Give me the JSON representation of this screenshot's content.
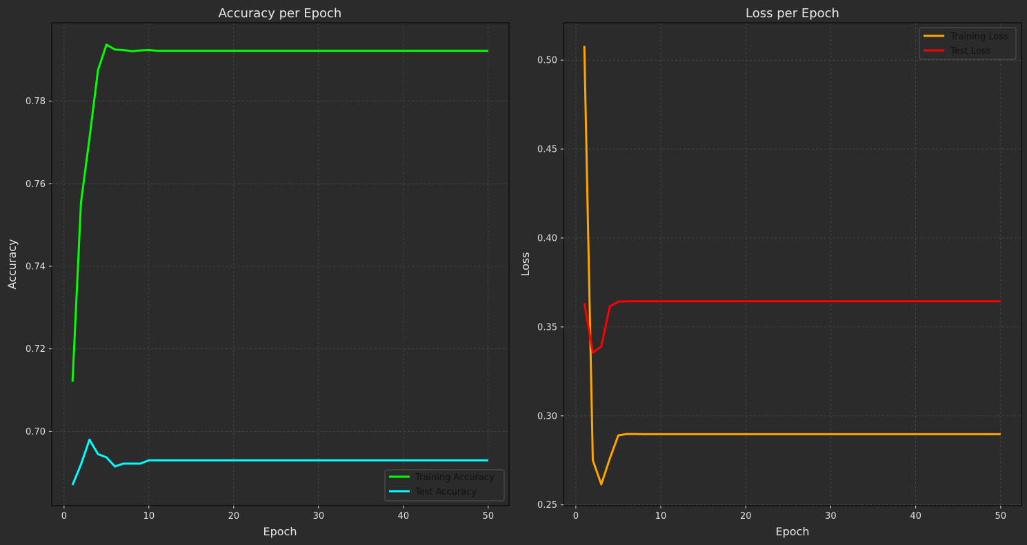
{
  "colors": {
    "background": "#2b2b2b",
    "axes_face": "#2b2b2b",
    "spine": "#000000",
    "text": "#e8e8e8",
    "tick_text": "#e0e0e0",
    "grid": "#555555",
    "legend_bg": "#2b2b2b",
    "legend_border": "#555555",
    "legend_text": "#111111"
  },
  "chart_data": [
    {
      "type": "line",
      "title": "Accuracy per Epoch",
      "xlabel": "Epoch",
      "ylabel": "Accuracy",
      "xlim": [
        -1.45,
        52.45
      ],
      "ylim": [
        0.682,
        0.799
      ],
      "xticks": [
        0,
        10,
        20,
        30,
        40,
        50
      ],
      "yticks": [
        0.7,
        0.72,
        0.74,
        0.76,
        0.78
      ],
      "ytick_labels": [
        "0.70",
        "0.72",
        "0.74",
        "0.76",
        "0.78"
      ],
      "grid": true,
      "legend": "lower right",
      "x": [
        1,
        2,
        3,
        4,
        5,
        6,
        7,
        8,
        9,
        10,
        11,
        12,
        13,
        14,
        15,
        16,
        17,
        18,
        19,
        20,
        21,
        22,
        23,
        24,
        25,
        26,
        27,
        28,
        29,
        30,
        31,
        32,
        33,
        34,
        35,
        36,
        37,
        38,
        39,
        40,
        41,
        42,
        43,
        44,
        45,
        46,
        47,
        48,
        49,
        50
      ],
      "series": [
        {
          "name": "Training Accuracy",
          "color": "#00ff00",
          "values": [
            0.712,
            0.7555,
            0.771,
            0.7875,
            0.7937,
            0.7925,
            0.7924,
            0.7921,
            0.7923,
            0.7924,
            0.7922,
            0.7922,
            0.7922,
            0.7922,
            0.7922,
            0.7922,
            0.7922,
            0.7922,
            0.7922,
            0.7922,
            0.7922,
            0.7922,
            0.7922,
            0.7922,
            0.7922,
            0.7922,
            0.7922,
            0.7922,
            0.7922,
            0.7922,
            0.7922,
            0.7922,
            0.7922,
            0.7922,
            0.7922,
            0.7922,
            0.7922,
            0.7922,
            0.7922,
            0.7922,
            0.7922,
            0.7922,
            0.7922,
            0.7922,
            0.7922,
            0.7922,
            0.7922,
            0.7922,
            0.7922,
            0.7922
          ]
        },
        {
          "name": "Test Accuracy",
          "color": "#00ffff",
          "values": [
            0.687,
            0.692,
            0.698,
            0.6945,
            0.6937,
            0.6915,
            0.6922,
            0.6922,
            0.6922,
            0.693,
            0.693,
            0.693,
            0.693,
            0.693,
            0.693,
            0.693,
            0.693,
            0.693,
            0.693,
            0.693,
            0.693,
            0.693,
            0.693,
            0.693,
            0.693,
            0.693,
            0.693,
            0.693,
            0.693,
            0.693,
            0.693,
            0.693,
            0.693,
            0.693,
            0.693,
            0.693,
            0.693,
            0.693,
            0.693,
            0.693,
            0.693,
            0.693,
            0.693,
            0.693,
            0.693,
            0.693,
            0.693,
            0.693,
            0.693,
            0.693
          ]
        }
      ]
    },
    {
      "type": "line",
      "title": "Loss per Epoch",
      "xlabel": "Epoch",
      "ylabel": "Loss",
      "xlim": [
        -1.45,
        52.45
      ],
      "ylim": [
        0.2495,
        0.521
      ],
      "xticks": [
        0,
        10,
        20,
        30,
        40,
        50
      ],
      "yticks": [
        0.25,
        0.3,
        0.35,
        0.4,
        0.45,
        0.5
      ],
      "ytick_labels": [
        "0.25",
        "0.30",
        "0.35",
        "0.40",
        "0.45",
        "0.50"
      ],
      "grid": true,
      "legend": "upper right",
      "x": [
        1,
        2,
        3,
        4,
        5,
        6,
        7,
        8,
        9,
        10,
        11,
        12,
        13,
        14,
        15,
        16,
        17,
        18,
        19,
        20,
        21,
        22,
        23,
        24,
        25,
        26,
        27,
        28,
        29,
        30,
        31,
        32,
        33,
        34,
        35,
        36,
        37,
        38,
        39,
        40,
        41,
        42,
        43,
        44,
        45,
        46,
        47,
        48,
        49,
        50
      ],
      "series": [
        {
          "name": "Training Loss",
          "color": "#ffa500",
          "values": [
            0.508,
            0.275,
            0.2615,
            0.276,
            0.289,
            0.2898,
            0.2898,
            0.2897,
            0.2897,
            0.2897,
            0.2897,
            0.2897,
            0.2897,
            0.2897,
            0.2897,
            0.2897,
            0.2897,
            0.2897,
            0.2897,
            0.2897,
            0.2897,
            0.2897,
            0.2897,
            0.2897,
            0.2897,
            0.2897,
            0.2897,
            0.2897,
            0.2897,
            0.2897,
            0.2897,
            0.2897,
            0.2897,
            0.2897,
            0.2897,
            0.2897,
            0.2897,
            0.2897,
            0.2897,
            0.2897,
            0.2897,
            0.2897,
            0.2897,
            0.2897,
            0.2897,
            0.2897,
            0.2897,
            0.2897,
            0.2897,
            0.2897
          ]
        },
        {
          "name": "Test Loss",
          "color": "#ff0000",
          "values": [
            0.3635,
            0.3355,
            0.339,
            0.3615,
            0.3642,
            0.3644,
            0.3644,
            0.3644,
            0.3644,
            0.3644,
            0.3644,
            0.3644,
            0.3644,
            0.3644,
            0.3644,
            0.3644,
            0.3644,
            0.3644,
            0.3644,
            0.3644,
            0.3644,
            0.3644,
            0.3644,
            0.3644,
            0.3644,
            0.3644,
            0.3644,
            0.3644,
            0.3644,
            0.3644,
            0.3644,
            0.3644,
            0.3644,
            0.3644,
            0.3644,
            0.3644,
            0.3644,
            0.3644,
            0.3644,
            0.3644,
            0.3644,
            0.3644,
            0.3644,
            0.3644,
            0.3644,
            0.3644,
            0.3644,
            0.3644,
            0.3644,
            0.3644
          ]
        }
      ]
    }
  ]
}
